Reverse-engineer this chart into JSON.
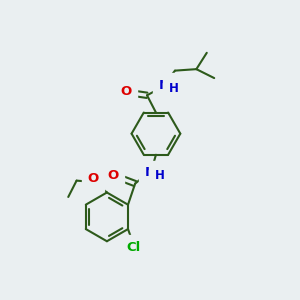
{
  "bg_color": "#eaeff1",
  "bond_color": "#2d5a1b",
  "bond_width": 1.5,
  "atom_colors": {
    "O": "#dd0000",
    "N": "#0000cc",
    "Cl": "#00aa00",
    "C": "#2d5a1b",
    "H": "#2d5a1b"
  },
  "font_size": 8.5,
  "figsize": [
    3.0,
    3.0
  ],
  "dpi": 100
}
